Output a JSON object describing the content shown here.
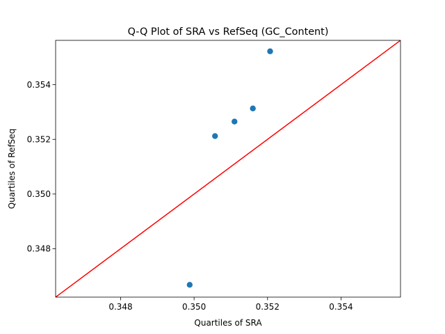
{
  "chart_data": {
    "type": "scatter",
    "title": "Q-Q Plot of SRA vs RefSeq (GC_Content)",
    "xlabel": "Quartiles of SRA",
    "ylabel": "Quartiles of RefSeq",
    "xlim": [
      0.34623,
      0.35562
    ],
    "ylim": [
      0.34623,
      0.35562
    ],
    "xticks": [
      0.348,
      0.35,
      0.352,
      0.354
    ],
    "yticks": [
      0.348,
      0.35,
      0.352,
      0.354
    ],
    "xtick_labels": [
      "0.348",
      "0.350",
      "0.352",
      "0.354"
    ],
    "ytick_labels": [
      "0.348",
      "0.350",
      "0.352",
      "0.354"
    ],
    "grid": false,
    "series": [
      {
        "points": [
          {
            "x": 0.34988,
            "y": 0.34668
          },
          {
            "x": 0.35057,
            "y": 0.35212
          },
          {
            "x": 0.3511,
            "y": 0.35265
          },
          {
            "x": 0.3516,
            "y": 0.35313
          },
          {
            "x": 0.35207,
            "y": 0.35522
          }
        ],
        "color": "#1f77b4"
      }
    ],
    "reference_line": {
      "slope": 1,
      "intercept": 0,
      "color": "#ff0000"
    }
  }
}
